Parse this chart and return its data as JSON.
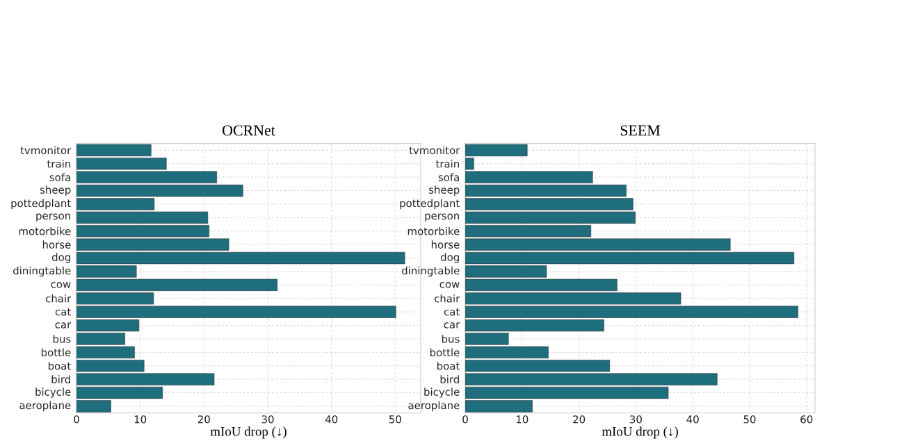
{
  "chart_data": [
    {
      "type": "bar",
      "orientation": "horizontal",
      "title": "OCRNet",
      "xlabel": "mIoU drop (↓)",
      "categories": [
        "tvmonitor",
        "train",
        "sofa",
        "sheep",
        "pottedplant",
        "person",
        "motorbike",
        "horse",
        "dog",
        "diningtable",
        "cow",
        "chair",
        "cat",
        "car",
        "bus",
        "bottle",
        "boat",
        "bird",
        "bicycle",
        "aeroplane"
      ],
      "values": [
        11.7,
        14.1,
        22.0,
        26.1,
        12.2,
        20.6,
        20.8,
        23.9,
        51.5,
        9.4,
        31.5,
        12.1,
        50.1,
        9.8,
        7.6,
        9.1,
        10.6,
        21.6,
        13.5,
        5.4
      ],
      "color": "#1f6e7e",
      "xlim": [
        0,
        54
      ],
      "xticks": [
        0,
        10,
        20,
        30,
        40,
        50
      ],
      "grid": true
    },
    {
      "type": "bar",
      "orientation": "horizontal",
      "title": "SEEM",
      "xlabel": "mIoU drop (↓)",
      "categories": [
        "tvmonitor",
        "train",
        "sofa",
        "sheep",
        "pottedplant",
        "person",
        "motorbike",
        "horse",
        "dog",
        "diningtable",
        "cow",
        "chair",
        "cat",
        "car",
        "bus",
        "bottle",
        "boat",
        "bird",
        "bicycle",
        "aeroplane"
      ],
      "values": [
        10.9,
        1.5,
        22.4,
        28.3,
        29.5,
        29.9,
        22.1,
        46.6,
        57.8,
        14.3,
        26.7,
        37.9,
        58.5,
        24.4,
        7.6,
        14.6,
        25.4,
        44.3,
        35.7,
        11.8
      ],
      "color": "#1f6e7e",
      "xlim": [
        0,
        61.5
      ],
      "xticks": [
        0,
        10,
        20,
        30,
        40,
        50,
        60
      ],
      "grid": true
    }
  ]
}
